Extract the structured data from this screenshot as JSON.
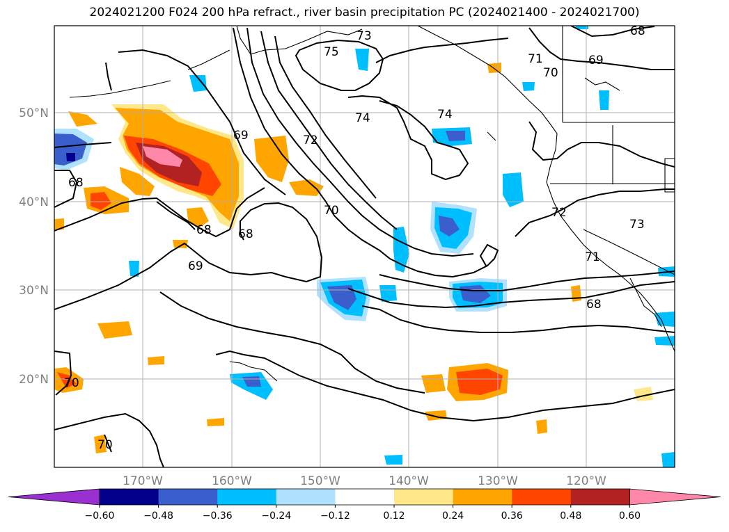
{
  "title": "2024021200 F024 200 hPa refract., river basin precipitation PC (2024021400 - 2024021700)",
  "latitude_labels": [
    "50°N",
    "40°N",
    "30°N",
    "20°N"
  ],
  "longitude_labels": [
    "170°W",
    "160°W",
    "150°W",
    "140°W",
    "130°W",
    "120°W"
  ],
  "colorbar": {
    "ticks": [
      "−0.60",
      "−0.48",
      "−0.36",
      "−0.24",
      "−0.12",
      "0.12",
      "0.24",
      "0.36",
      "0.48",
      "0.60"
    ],
    "colors": [
      "#9b30d0",
      "#00008b",
      "#3a5fcd",
      "#00bfff",
      "#b0e2ff",
      "#ffffff",
      "#ffe88a",
      "#ffa500",
      "#ff4500",
      "#b22222",
      "#ff88aa"
    ]
  },
  "contour_labels": [
    "73",
    "75",
    "74",
    "74",
    "72",
    "69",
    "68",
    "68",
    "68",
    "69",
    "70",
    "72",
    "73",
    "71",
    "68",
    "70",
    "70",
    "68",
    "69",
    "71",
    "70"
  ],
  "colors": {
    "land_outline": "#000000",
    "grid": "#b0b0b0",
    "contour": "#000000"
  }
}
